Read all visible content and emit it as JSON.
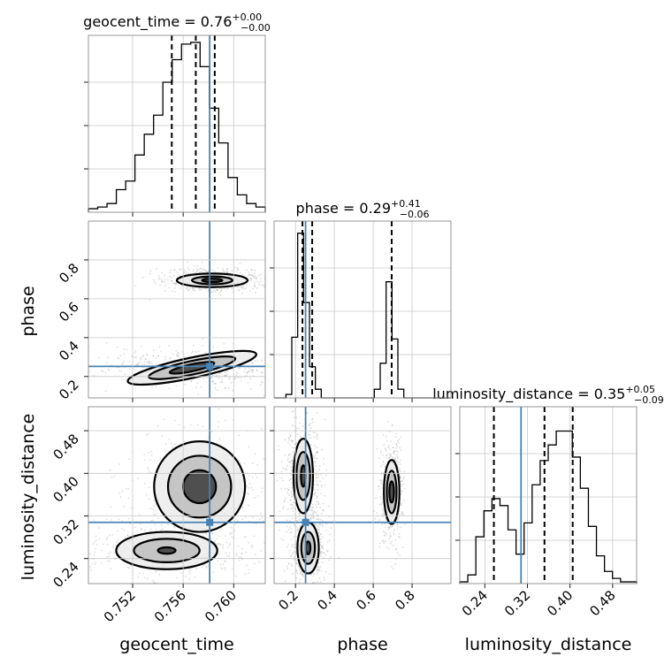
{
  "chart_data": {
    "type": "corner",
    "parameters": [
      "geocent_time",
      "phase",
      "luminosity_distance"
    ],
    "truths": {
      "geocent_time": 0.7581,
      "phase": 0.252,
      "luminosity_distance": 0.308
    },
    "colors": {
      "truth": "#4682b4",
      "contour": "#000000",
      "grid": "#c8c8c8",
      "frame": "#8a8a8a"
    },
    "grid": true,
    "geocent_time": {
      "range": [
        0.7485,
        0.7625
      ],
      "ticks": [
        "0.752",
        "0.756",
        "0.760"
      ],
      "tick_values": [
        0.752,
        0.756,
        0.76
      ],
      "title": {
        "name": "geocent_time",
        "median": "0.76",
        "plus": "+0.00",
        "minus": "−0.00"
      },
      "quantiles": [
        0.7551,
        0.757,
        0.7585
      ],
      "histogram": [
        0.02,
        0.03,
        0.05,
        0.13,
        0.18,
        0.33,
        0.45,
        0.56,
        0.75,
        0.88,
        0.97,
        0.98,
        0.84,
        0.6,
        0.4,
        0.2,
        0.1,
        0.05,
        0.03
      ]
    },
    "phase": {
      "range": [
        0.09,
        1.0
      ],
      "ticks": [
        "0.2",
        "0.4",
        "0.6",
        "0.8"
      ],
      "tick_values": [
        0.2,
        0.4,
        0.6,
        0.8
      ],
      "title": {
        "name": "phase",
        "median": "0.29",
        "plus": "+0.41",
        "minus": "−0.06"
      },
      "quantiles": [
        0.236,
        0.286,
        0.695
      ],
      "histogram": [
        0.0,
        0.0,
        0.02,
        0.35,
        0.95,
        0.55,
        0.18,
        0.05,
        0.0,
        0.0,
        0.0,
        0.0,
        0.0,
        0.0,
        0.0,
        0.0,
        0.0,
        0.05,
        0.2,
        0.67,
        0.34,
        0.05,
        0.0,
        0.0,
        0.0,
        0.0,
        0.0,
        0.0,
        0.0,
        0.0
      ]
    },
    "luminosity_distance": {
      "range": [
        0.193,
        0.525
      ],
      "ticks": [
        "0.24",
        "0.32",
        "0.40",
        "0.48"
      ],
      "tick_values": [
        0.24,
        0.32,
        0.4,
        0.48
      ],
      "title": {
        "name": "luminosity_distance",
        "median": "0.35",
        "plus": "+0.05",
        "minus": "−0.09"
      },
      "quantiles": [
        0.257,
        0.352,
        0.405
      ],
      "histogram": [
        0.01,
        0.05,
        0.27,
        0.42,
        0.49,
        0.45,
        0.31,
        0.17,
        0.35,
        0.57,
        0.71,
        0.8,
        0.88,
        0.88,
        0.73,
        0.55,
        0.33,
        0.16,
        0.07,
        0.03,
        0.01,
        0.01
      ]
    },
    "contours_2d": {
      "phase_vs_geocent_time": {
        "modes": [
          {
            "center": [
              0.7583,
              0.695
            ],
            "sigma": [
              0.0012,
              0.018
            ],
            "angle": 0,
            "levels": [
              [
                0.0028,
                0.035
              ],
              [
                0.0016,
                0.02
              ],
              [
                0.0008,
                0.009
              ]
            ]
          },
          {
            "center": [
              0.7567,
              0.245
            ],
            "sigma": [
              0.002,
              0.03
            ],
            "angle": -12,
            "levels": [
              [
                0.0052,
                0.052
              ],
              [
                0.0035,
                0.035
              ],
              [
                0.0018,
                0.018
              ]
            ]
          }
        ]
      },
      "luminosity_distance_vs_geocent_time": {
        "modes": [
          {
            "center": [
              0.7573,
              0.375
            ],
            "sigma": [
              0.0017,
              0.035
            ],
            "angle": 0,
            "levels": [
              [
                0.0036,
                0.085
              ],
              [
                0.0025,
                0.058
              ],
              [
                0.0013,
                0.031
              ]
            ]
          },
          {
            "center": [
              0.7547,
              0.255
            ],
            "sigma": [
              0.002,
              0.016
            ],
            "angle": 0,
            "levels": [
              [
                0.004,
                0.035
              ],
              [
                0.0026,
                0.022
              ],
              [
                0.0007,
                0.006
              ]
            ]
          }
        ]
      },
      "luminosity_distance_vs_phase": {
        "modes": [
          {
            "center": [
              0.24,
              0.395
            ],
            "sigma": [
              0.03,
              0.035
            ],
            "angle": 0,
            "levels": [
              [
                0.05,
                0.07
              ],
              [
                0.035,
                0.045
              ],
              [
                0.012,
                0.02
              ]
            ]
          },
          {
            "center": [
              0.265,
              0.26
            ],
            "sigma": [
              0.03,
              0.03
            ],
            "angle": 0,
            "levels": [
              [
                0.055,
                0.048
              ],
              [
                0.035,
                0.03
              ],
              [
                0.012,
                0.012
              ]
            ]
          },
          {
            "center": [
              0.695,
              0.365
            ],
            "sigma": [
              0.018,
              0.03
            ],
            "angle": 0,
            "levels": [
              [
                0.04,
                0.06
              ],
              [
                0.025,
                0.04
              ],
              [
                0.012,
                0.02
              ]
            ]
          }
        ]
      }
    }
  }
}
